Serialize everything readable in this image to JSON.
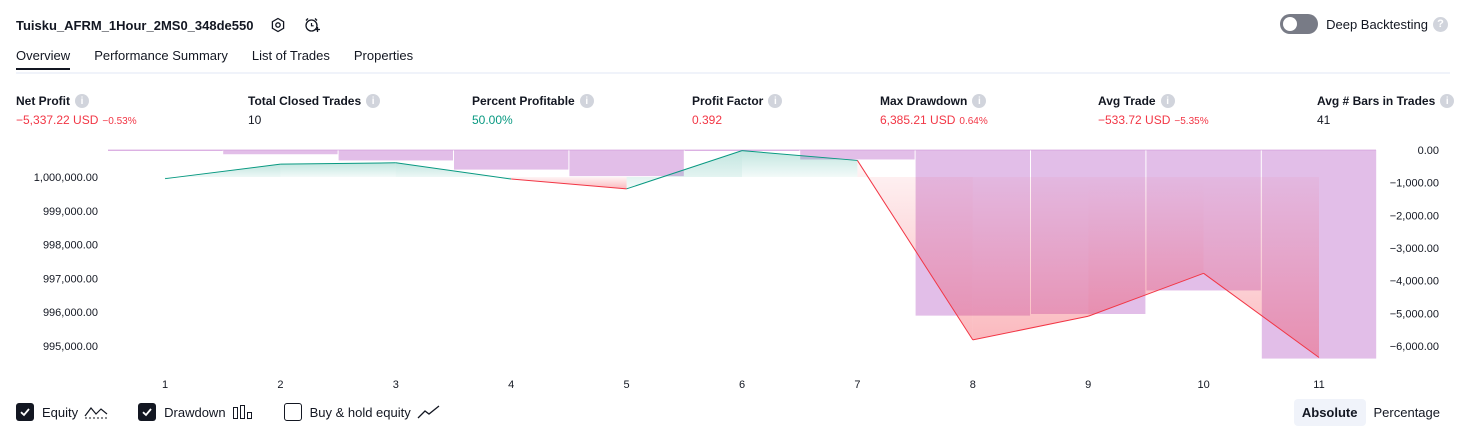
{
  "header": {
    "title": "Tuisku_AFRM_1Hour_2MS0_348de550"
  },
  "deep_backtesting": {
    "label": "Deep Backtesting",
    "help": "?"
  },
  "tabs": [
    {
      "label": "Overview"
    },
    {
      "label": "Performance Summary"
    },
    {
      "label": "List of Trades"
    },
    {
      "label": "Properties"
    }
  ],
  "stats": [
    {
      "label": "Net Profit",
      "value": "−5,337.22 USD",
      "pct": "−0.53%",
      "tone": "neg"
    },
    {
      "label": "Total Closed Trades",
      "value": "10",
      "pct": "",
      "tone": "neu"
    },
    {
      "label": "Percent Profitable",
      "value": "50.00%",
      "pct": "",
      "tone": "pos"
    },
    {
      "label": "Profit Factor",
      "value": "0.392",
      "pct": "",
      "tone": "neg"
    },
    {
      "label": "Max Drawdown",
      "value": "6,385.21 USD",
      "pct": "0.64%",
      "tone": "neg"
    },
    {
      "label": "Avg Trade",
      "value": "−533.72 USD",
      "pct": "−5.35%",
      "tone": "neg"
    },
    {
      "label": "Avg # Bars in Trades",
      "value": "41",
      "pct": "",
      "tone": "neu"
    }
  ],
  "chart_data": {
    "type": "line",
    "x": [
      1,
      2,
      3,
      4,
      5,
      6,
      7,
      8,
      9,
      10,
      11
    ],
    "x_tick_labels": [
      "1",
      "2",
      "3",
      "4",
      "5",
      "6",
      "7",
      "8",
      "9",
      "10",
      "11"
    ],
    "series": [
      {
        "name": "Equity",
        "type": "line",
        "values": [
          999950,
          1000380,
          1000420,
          999940,
          999650,
          1000780,
          1000490,
          995180,
          995880,
          997150,
          994660
        ],
        "axis": "left"
      },
      {
        "name": "Drawdown",
        "type": "bar",
        "values": [
          -20,
          -130,
          -320,
          -600,
          -800,
          0,
          -290,
          -5070,
          -5020,
          -4300,
          -6385
        ],
        "axis": "right"
      }
    ],
    "equity_baseline": 1000000,
    "left_axis": {
      "ticks": [
        "1,000,000.00",
        "999,000.00",
        "998,000.00",
        "997,000.00",
        "996,000.00",
        "995,000.00"
      ],
      "ylim": [
        994500,
        1000900
      ]
    },
    "right_axis": {
      "ticks": [
        "0.00",
        "−1,000.00",
        "−2,000.00",
        "−3,000.00",
        "−4,000.00",
        "−5,000.00",
        "−6,000.00"
      ],
      "ylim": [
        -6300,
        0
      ]
    },
    "colors": {
      "profit": "#089981",
      "loss": "#f23645",
      "drawdown": "#ce93d8"
    }
  },
  "legend": {
    "equity": {
      "label": "Equity",
      "checked": true
    },
    "drawdown": {
      "label": "Drawdown",
      "checked": true
    },
    "buy_hold": {
      "label": "Buy & hold equity",
      "checked": false
    }
  },
  "view_mode": {
    "absolute": "Absolute",
    "percentage": "Percentage",
    "selected": "absolute"
  }
}
